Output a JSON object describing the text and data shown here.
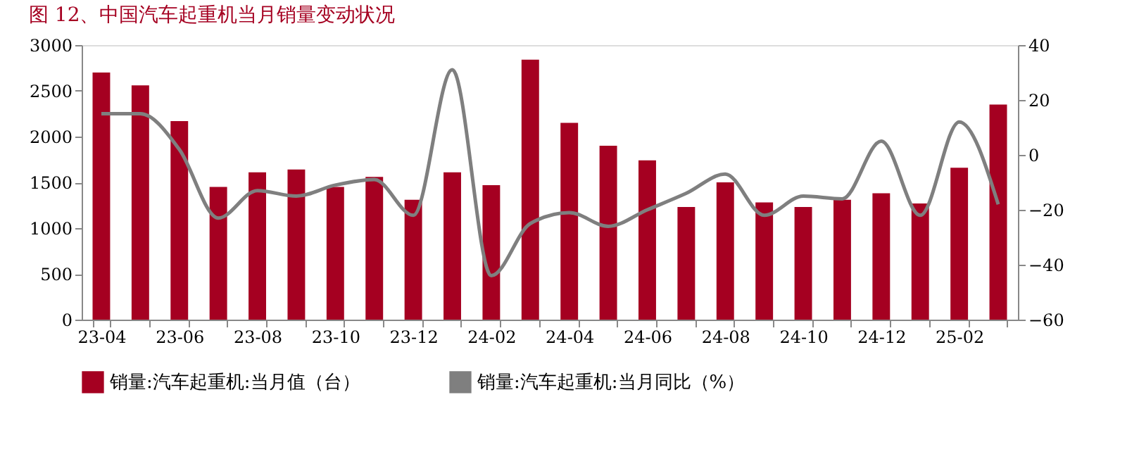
{
  "chart_data": {
    "type": "bar",
    "title": "图 12、中国汽车起重机当月销量变动状况",
    "categories": [
      "23-04",
      null,
      "23-06",
      null,
      "23-08",
      null,
      "23-10",
      null,
      "23-12",
      null,
      "24-02",
      null,
      "24-04",
      null,
      "24-06",
      null,
      "24-08",
      null,
      "24-10",
      null,
      "24-12",
      null,
      "25-02",
      null
    ],
    "series": [
      {
        "name": "销量:汽车起重机:当月值（台）",
        "color": "#a50021",
        "values": [
          2700,
          2560,
          2170,
          1450,
          1610,
          1640,
          1450,
          1560,
          1310,
          1610,
          1470,
          2840,
          2150,
          1900,
          1740,
          1230,
          1500,
          1280,
          1230,
          1310,
          1380,
          1270,
          1660,
          2350
        ]
      },
      {
        "name": "销量:汽车起重机:当月同比（%）",
        "type": "line",
        "axis": "y2",
        "color": "#7f7f7f",
        "values": [
          15,
          15,
          2,
          -23,
          -13,
          -15,
          -11,
          -9,
          -22,
          31,
          -44,
          -25,
          -21,
          -26,
          -20,
          -14,
          -7,
          -22,
          -15,
          -16,
          5,
          -22,
          12,
          -18
        ]
      }
    ],
    "ylim": [
      0,
      3000
    ],
    "yticks": [
      0,
      500,
      1000,
      1500,
      2000,
      2500,
      3000
    ],
    "y2lim": [
      -60,
      40
    ],
    "y2ticks": [
      -60,
      -40,
      -20,
      0,
      20,
      40
    ],
    "grid": false,
    "legend": "bottom"
  }
}
